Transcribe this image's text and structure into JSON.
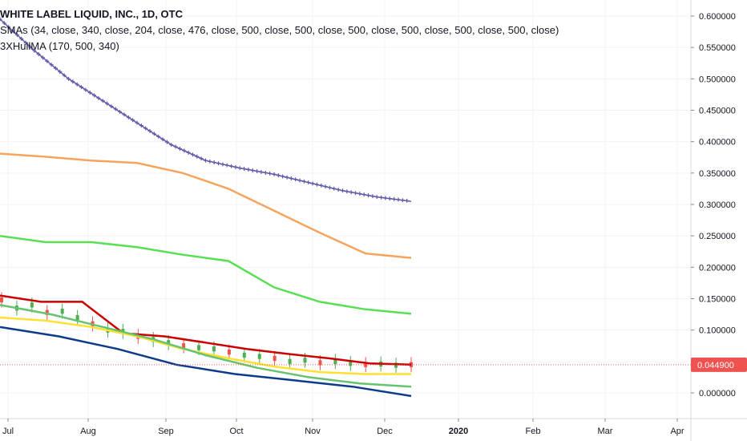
{
  "legend": {
    "title": "WHITE LABEL LIQUID, INC., 1D, OTC",
    "smas": "SMAs (34, close, 340, close, 204, close, 476, close, 500, close, 500, close, 500, close, 500, close, 500, close, 500, close)",
    "hullma": "3XHullMA (170, 500, 340)"
  },
  "last_price": {
    "label": "0.044900",
    "value": 0.0449,
    "color": "#ef5350"
  },
  "chart_data": {
    "type": "line",
    "title": "WHITE LABEL LIQUID, INC., 1D, OTC",
    "x_ticks": [
      "Jul",
      "Aug",
      "Sep",
      "Oct",
      "Nov",
      "Dec",
      "2020",
      "Feb",
      "Mar",
      "Apr"
    ],
    "y_ticks": [
      "0.600000",
      "0.550000",
      "0.500000",
      "0.450000",
      "0.400000",
      "0.350000",
      "0.300000",
      "0.250000",
      "0.200000",
      "0.150000",
      "0.100000",
      "0.050000",
      "0.000000"
    ],
    "ylim": [
      -0.03,
      0.62
    ],
    "grid": true,
    "series": [
      {
        "color": "#5e5aa8",
        "marker": "cross",
        "values": [
          0.595,
          0.545,
          0.5,
          0.465,
          0.43,
          0.395,
          0.37,
          0.358,
          0.348,
          0.335,
          0.322,
          0.312,
          0.305
        ]
      },
      {
        "color": "#f5a45d",
        "values": [
          0.381,
          0.376,
          0.37,
          0.366,
          0.35,
          0.325,
          0.29,
          0.255,
          0.222,
          0.215
        ]
      },
      {
        "color": "#58e053",
        "values": [
          0.25,
          0.24,
          0.24,
          0.232,
          0.22,
          0.21,
          0.168,
          0.145,
          0.133,
          0.126
        ]
      },
      {
        "color": "#cc0000",
        "values": [
          0.155,
          0.145,
          0.145,
          0.095,
          0.09,
          0.08,
          0.07,
          0.062,
          0.055,
          0.047,
          0.045
        ]
      },
      {
        "color": "#ffe033",
        "values": [
          0.12,
          0.115,
          0.105,
          0.09,
          0.07,
          0.055,
          0.042,
          0.033,
          0.03,
          0.03
        ]
      },
      {
        "color": "#66c36f",
        "values": [
          0.14,
          0.125,
          0.105,
          0.085,
          0.06,
          0.04,
          0.025,
          0.015,
          0.01
        ]
      },
      {
        "color": "#0d3b8c",
        "values": [
          0.105,
          0.09,
          0.07,
          0.045,
          0.03,
          0.02,
          0.01,
          -0.005
        ]
      }
    ],
    "candles": {
      "up_color": "#4caf50",
      "down_color": "#ef5350",
      "values": [
        0.148,
        0.135,
        0.14,
        0.128,
        0.13,
        0.12,
        0.11,
        0.1,
        0.098,
        0.09,
        0.085,
        0.08,
        0.075,
        0.072,
        0.07,
        0.065,
        0.06,
        0.058,
        0.055,
        0.05,
        0.052,
        0.048,
        0.05,
        0.047,
        0.045,
        0.046,
        0.044,
        0.045
      ]
    }
  }
}
